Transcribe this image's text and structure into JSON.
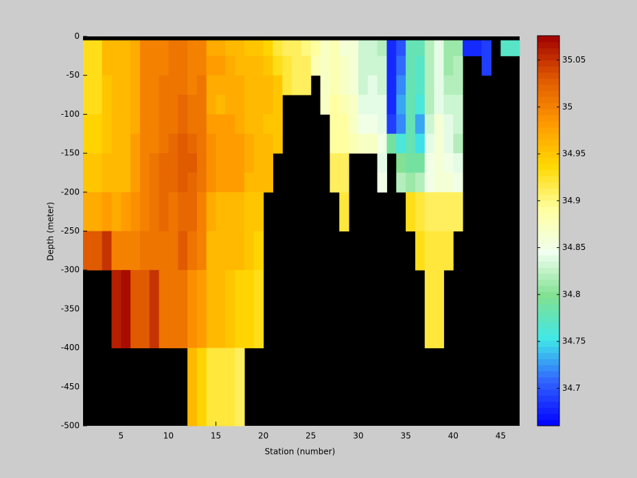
{
  "chart_data": {
    "type": "heatmap",
    "xlabel": "Station (number)",
    "ylabel": "Depth (meter)",
    "x_bins": [
      1,
      2,
      3,
      4,
      5,
      6,
      7,
      8,
      9,
      10,
      11,
      12,
      13,
      14,
      15,
      16,
      17,
      18,
      19,
      20,
      21,
      22,
      23,
      24,
      25,
      26,
      27,
      28,
      29,
      30,
      31,
      32,
      33,
      34,
      35,
      36,
      37,
      38,
      39,
      40,
      41,
      42,
      43,
      44,
      45,
      46,
      47
    ],
    "y_bins": [
      -5,
      -25,
      -50,
      -75,
      -100,
      -125,
      -150,
      -175,
      -200,
      -250,
      -300,
      -400,
      -500
    ],
    "values": [
      [
        34.93,
        34.93,
        34.93,
        34.93,
        34.94,
        34.94,
        34.95,
        34.95,
        34.97,
        35.03,
        null,
        null
      ],
      [
        34.93,
        34.93,
        34.93,
        34.93,
        34.94,
        34.94,
        34.95,
        34.95,
        34.97,
        35.03,
        null,
        null
      ],
      [
        34.96,
        34.96,
        34.95,
        34.95,
        34.95,
        34.95,
        34.96,
        34.96,
        34.98,
        35.05,
        null,
        null
      ],
      [
        34.96,
        34.96,
        34.96,
        34.96,
        34.96,
        34.96,
        34.96,
        34.96,
        34.97,
        35.0,
        35.06,
        null
      ],
      [
        34.96,
        34.96,
        34.96,
        34.96,
        34.96,
        34.96,
        34.96,
        34.96,
        34.98,
        35.0,
        35.07,
        null
      ],
      [
        34.97,
        34.97,
        34.97,
        34.97,
        34.97,
        34.98,
        34.98,
        34.98,
        34.99,
        35.0,
        35.03,
        null
      ],
      [
        35.0,
        35.0,
        35.0,
        35.0,
        35.0,
        35.0,
        35.0,
        35.0,
        35.0,
        35.01,
        35.03,
        null
      ],
      [
        35.0,
        35.0,
        35.0,
        35.0,
        35.0,
        35.0,
        35.01,
        35.01,
        35.01,
        35.01,
        35.05,
        null
      ],
      [
        35.0,
        35.0,
        35.01,
        35.01,
        35.01,
        35.01,
        35.02,
        35.02,
        35.02,
        35.01,
        35.01,
        null
      ],
      [
        35.01,
        35.01,
        35.01,
        35.01,
        35.01,
        35.02,
        35.02,
        35.02,
        35.01,
        35.01,
        35.01,
        null
      ],
      [
        35.01,
        35.01,
        35.01,
        35.02,
        35.02,
        35.03,
        35.03,
        35.03,
        35.02,
        35.03,
        35.01,
        null
      ],
      [
        35.0,
        35.0,
        35.0,
        35.01,
        35.01,
        35.02,
        35.03,
        35.02,
        35.02,
        35.01,
        34.99,
        34.96
      ],
      [
        35.0,
        35.0,
        35.01,
        35.01,
        35.01,
        35.01,
        35.01,
        35.01,
        35.0,
        35.0,
        34.98,
        34.94
      ],
      [
        34.97,
        34.98,
        34.97,
        34.97,
        34.98,
        34.99,
        34.99,
        34.99,
        34.97,
        34.96,
        34.96,
        34.92
      ],
      [
        34.97,
        34.98,
        34.97,
        34.96,
        34.98,
        34.98,
        34.98,
        34.98,
        34.96,
        34.96,
        34.96,
        34.92
      ],
      [
        34.96,
        34.97,
        34.97,
        34.97,
        34.98,
        34.98,
        34.98,
        34.98,
        34.96,
        34.96,
        34.95,
        34.92
      ],
      [
        34.96,
        34.96,
        34.97,
        34.97,
        34.97,
        34.98,
        34.98,
        34.98,
        34.96,
        34.96,
        34.94,
        34.91
      ],
      [
        34.95,
        34.96,
        34.96,
        34.96,
        34.96,
        34.97,
        34.97,
        34.96,
        34.95,
        34.95,
        34.94,
        null
      ],
      [
        34.95,
        34.96,
        34.96,
        34.96,
        34.96,
        34.96,
        34.96,
        34.96,
        34.95,
        34.94,
        34.93,
        null
      ],
      [
        34.94,
        34.95,
        34.96,
        34.96,
        34.95,
        34.96,
        34.96,
        34.96,
        null,
        null,
        null,
        null
      ],
      [
        34.92,
        34.93,
        34.95,
        34.95,
        34.95,
        34.95,
        null,
        null,
        null,
        null,
        null,
        null
      ],
      [
        34.91,
        34.92,
        34.92,
        null,
        null,
        null,
        null,
        null,
        null,
        null,
        null,
        null
      ],
      [
        34.91,
        34.91,
        34.91,
        null,
        null,
        null,
        null,
        null,
        null,
        null,
        null,
        null
      ],
      [
        34.9,
        34.91,
        34.91,
        null,
        null,
        null,
        null,
        null,
        null,
        null,
        null,
        null
      ],
      [
        34.89,
        34.88,
        null,
        null,
        null,
        null,
        null,
        null,
        null,
        null,
        null,
        null
      ],
      [
        34.87,
        34.87,
        34.87,
        34.87,
        null,
        null,
        null,
        null,
        null,
        null,
        null,
        null
      ],
      [
        34.88,
        34.88,
        34.88,
        34.89,
        34.89,
        34.89,
        34.91,
        34.91,
        null,
        null,
        null,
        null
      ],
      [
        34.86,
        34.87,
        34.87,
        34.88,
        34.89,
        34.89,
        34.91,
        34.91,
        34.92,
        null,
        null,
        null
      ],
      [
        34.86,
        34.86,
        34.86,
        34.87,
        34.87,
        34.88,
        null,
        null,
        null,
        null,
        null,
        null
      ],
      [
        34.83,
        34.83,
        34.83,
        34.84,
        34.85,
        34.87,
        null,
        null,
        null,
        null,
        null,
        null
      ],
      [
        34.83,
        34.83,
        34.84,
        34.84,
        34.85,
        34.87,
        null,
        null,
        null,
        null,
        null,
        null
      ],
      [
        34.82,
        34.83,
        34.83,
        34.84,
        34.84,
        34.85,
        34.84,
        34.85,
        null,
        null,
        null,
        null
      ],
      [
        34.68,
        34.68,
        34.68,
        34.68,
        34.69,
        34.79,
        null,
        null,
        null,
        null,
        null,
        null
      ],
      [
        34.7,
        34.71,
        34.72,
        34.73,
        34.72,
        34.76,
        34.8,
        34.82,
        null,
        null,
        null,
        null
      ],
      [
        34.78,
        34.78,
        34.78,
        34.78,
        34.78,
        34.78,
        34.79,
        34.81,
        34.93,
        null,
        null,
        null
      ],
      [
        34.78,
        34.77,
        34.77,
        34.76,
        34.73,
        34.75,
        34.79,
        34.82,
        34.92,
        34.93,
        null,
        null
      ],
      [
        34.82,
        34.82,
        34.82,
        34.82,
        34.83,
        34.84,
        34.85,
        34.85,
        34.91,
        34.92,
        34.92,
        null
      ],
      [
        34.84,
        34.84,
        34.84,
        34.84,
        34.86,
        34.86,
        34.86,
        34.86,
        34.91,
        34.92,
        34.92,
        null
      ],
      [
        34.81,
        34.81,
        34.82,
        34.83,
        34.84,
        34.84,
        34.85,
        34.86,
        34.91,
        34.92,
        null,
        null
      ],
      [
        34.81,
        34.82,
        34.82,
        34.83,
        34.83,
        34.82,
        34.84,
        34.85,
        34.91,
        null,
        null,
        null
      ],
      [
        34.68,
        null,
        null,
        null,
        null,
        null,
        null,
        null,
        null,
        null,
        null,
        null
      ],
      [
        34.68,
        null,
        null,
        null,
        null,
        null,
        null,
        null,
        null,
        null,
        null,
        null
      ],
      [
        34.69,
        34.69,
        null,
        null,
        null,
        null,
        null,
        null,
        null,
        null,
        null,
        null
      ],
      [
        null,
        null,
        null,
        null,
        null,
        null,
        null,
        null,
        null,
        null,
        null,
        null
      ],
      [
        34.77,
        null,
        null,
        null,
        null,
        null,
        null,
        null,
        null,
        null,
        null,
        null
      ],
      [
        34.77,
        null,
        null,
        null,
        null,
        null,
        null,
        null,
        null,
        null,
        null,
        null
      ]
    ],
    "xlim": [
      1,
      47
    ],
    "ylim": [
      -500,
      0
    ],
    "xticks": [
      5,
      10,
      15,
      20,
      25,
      30,
      35,
      40,
      45
    ],
    "yticks": [
      -500,
      -450,
      -400,
      -350,
      -300,
      -250,
      -200,
      -150,
      -100,
      -50,
      0
    ],
    "clim": [
      34.66,
      35.076
    ],
    "cticks": [
      34.7,
      34.75,
      34.8,
      34.85,
      34.9,
      34.95,
      35,
      35.05
    ],
    "colormap": [
      "#0000ff",
      "#3060ff",
      "#40e8e8",
      "#80e090",
      "#f0fff0",
      "#ffffa0",
      "#ffd800",
      "#ff9800",
      "#e05a00",
      "#a00000"
    ],
    "nan_color": "#000000"
  }
}
